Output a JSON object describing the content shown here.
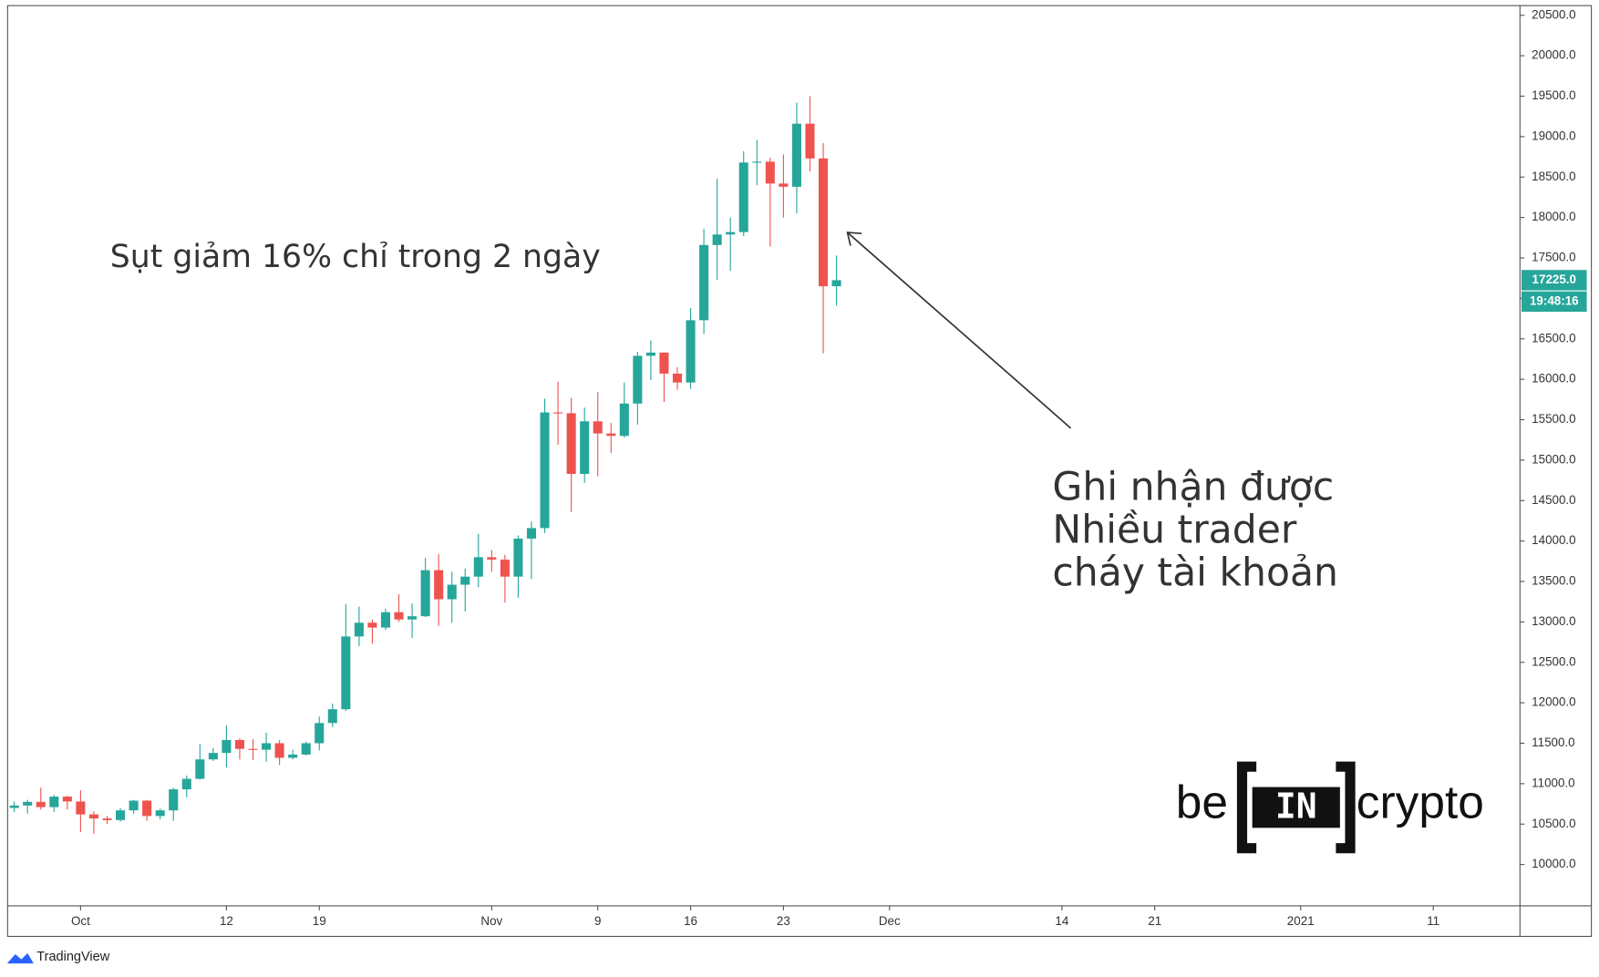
{
  "chart_data": {
    "type": "candlestick",
    "open": [
      10700,
      10730,
      10775,
      10710,
      10840,
      10780,
      10620,
      10570,
      10550,
      10670,
      10790,
      10600,
      10670,
      10930,
      11060,
      11300,
      11380,
      11540,
      11430,
      11420,
      11500,
      11320,
      11360,
      11500,
      11750,
      11920,
      12820,
      12990,
      12930,
      13120,
      13030,
      13070,
      13640,
      13280,
      13460,
      13560,
      13800,
      13770,
      13560,
      14030,
      14160,
      15590,
      15580,
      14830,
      15480,
      15330,
      15300,
      15700,
      16290,
      16330,
      16070,
      15960,
      16730,
      17660,
      17790,
      17820,
      18680,
      18690,
      18420,
      18380,
      19160,
      18730,
      17150
    ],
    "high": [
      10780,
      10800,
      10950,
      10860,
      10850,
      10920,
      10660,
      10600,
      10700,
      10800,
      10800,
      10690,
      10950,
      11100,
      11490,
      11440,
      11720,
      11560,
      11550,
      11630,
      11540,
      11420,
      11520,
      11830,
      11990,
      13220,
      13190,
      13030,
      13160,
      13340,
      13230,
      13790,
      13840,
      13620,
      13660,
      14090,
      13890,
      13830,
      14070,
      14240,
      15760,
      15970,
      15770,
      15650,
      15840,
      15460,
      15960,
      16340,
      16480,
      16330,
      16150,
      16880,
      17860,
      18480,
      18000,
      18820,
      18960,
      18740,
      18780,
      19420,
      19500,
      18920,
      17530
    ],
    "low": [
      10650,
      10630,
      10680,
      10650,
      10680,
      10400,
      10380,
      10500,
      10530,
      10630,
      10540,
      10560,
      10540,
      10830,
      11050,
      11280,
      11200,
      11300,
      11290,
      11270,
      11230,
      11300,
      11350,
      11410,
      11700,
      11900,
      12700,
      12730,
      12900,
      13000,
      12800,
      13060,
      12950,
      12990,
      13130,
      13430,
      13620,
      13240,
      13300,
      13530,
      14100,
      15190,
      14360,
      14720,
      14800,
      15090,
      15280,
      15440,
      15990,
      15720,
      15870,
      15880,
      16560,
      17230,
      17340,
      17770,
      18400,
      17640,
      18000,
      18050,
      18570,
      16320,
      16910
    ],
    "close": [
      10730,
      10775,
      10710,
      10840,
      10780,
      10620,
      10570,
      10550,
      10670,
      10790,
      10600,
      10670,
      10930,
      11060,
      11300,
      11380,
      11540,
      11430,
      11420,
      11500,
      11320,
      11360,
      11500,
      11750,
      11920,
      12820,
      12990,
      12930,
      13120,
      13030,
      13070,
      13640,
      13280,
      13460,
      13560,
      13800,
      13770,
      13560,
      14030,
      14160,
      15590,
      15580,
      14830,
      15480,
      15330,
      15300,
      15700,
      16290,
      16330,
      16070,
      15960,
      16730,
      17660,
      17790,
      17820,
      18680,
      18690,
      18420,
      18380,
      19160,
      18730,
      17150,
      17225
    ],
    "up_color": "#26a69a",
    "down_color": "#ef5350",
    "xlim": [
      -0.5,
      113.5
    ],
    "xticks": [
      {
        "value": 5,
        "label": "Oct"
      },
      {
        "value": 16,
        "label": "12"
      },
      {
        "value": 23,
        "label": "19"
      },
      {
        "value": 36,
        "label": "Nov"
      },
      {
        "value": 44,
        "label": "9"
      },
      {
        "value": 51,
        "label": "16"
      },
      {
        "value": 58,
        "label": "23"
      },
      {
        "value": 66,
        "label": "Dec"
      },
      {
        "value": 79,
        "label": "14"
      },
      {
        "value": 86,
        "label": "21"
      },
      {
        "value": 97,
        "label": "2021"
      },
      {
        "value": 107,
        "label": "11"
      }
    ],
    "ylim": [
      9496,
      20626
    ],
    "yticks": [
      {
        "value": 10000,
        "label": "10000.0"
      },
      {
        "value": 10500,
        "label": "10500.0"
      },
      {
        "value": 11000,
        "label": "11000.0"
      },
      {
        "value": 11500,
        "label": "11500.0"
      },
      {
        "value": 12000,
        "label": "12000.0"
      },
      {
        "value": 12500,
        "label": "12500.0"
      },
      {
        "value": 13000,
        "label": "13000.0"
      },
      {
        "value": 13500,
        "label": "13500.0"
      },
      {
        "value": 14000,
        "label": "14000.0"
      },
      {
        "value": 14500,
        "label": "14500.0"
      },
      {
        "value": 15000,
        "label": "15000.0"
      },
      {
        "value": 15500,
        "label": "15500.0"
      },
      {
        "value": 16000,
        "label": "16000.0"
      },
      {
        "value": 16500,
        "label": "16500.0"
      },
      {
        "value": 17000,
        "label": "17000.0"
      },
      {
        "value": 17500,
        "label": "17500.0"
      },
      {
        "value": 18000,
        "label": "18000.0"
      },
      {
        "value": 18500,
        "label": "18500.0"
      },
      {
        "value": 19000,
        "label": "19000.0"
      },
      {
        "value": 19500,
        "label": "19500.0"
      },
      {
        "value": 20000,
        "label": "20000.0"
      },
      {
        "value": 20500,
        "label": "20500.0"
      }
    ],
    "last_price": {
      "value": 17225,
      "label": "17225.0"
    },
    "countdown": "19:48:16",
    "annotations": [
      "Sụt giảm 16% chỉ trong 2 ngày",
      "Ghi nhận được",
      "Nhiều trader",
      "cháy tài khoản"
    ]
  },
  "watermark": {
    "left": "be",
    "middle": "IN",
    "right": "crypto"
  },
  "footer": "TradingView"
}
